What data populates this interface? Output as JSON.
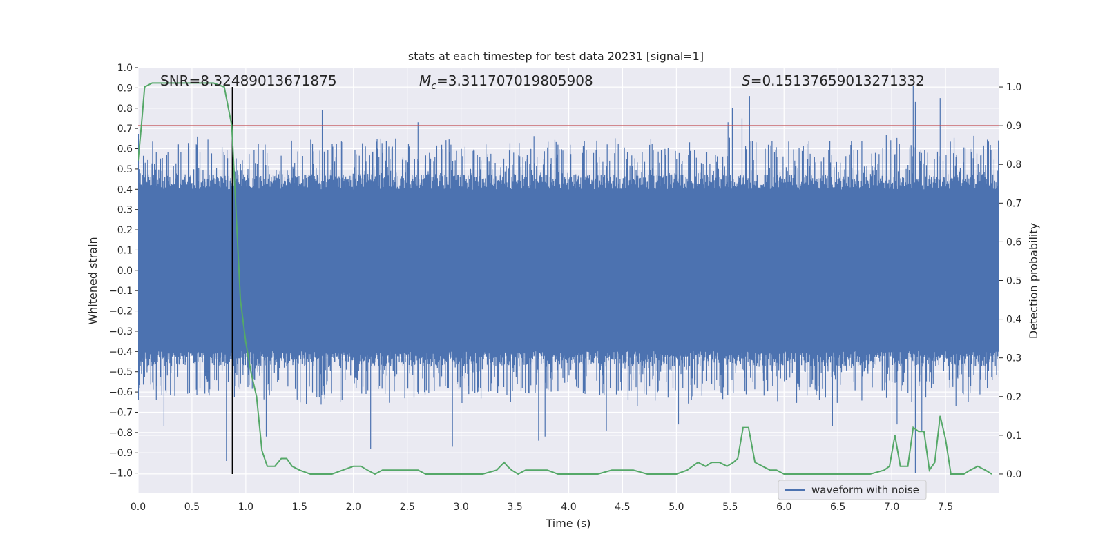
{
  "chart_data": {
    "type": "line",
    "title": "stats at each timestep for test data 20231 [signal=1]",
    "xlabel": "Time (s)",
    "ylabel": "Whitened strain",
    "y2label": "Detection probability",
    "xlim": [
      0,
      8.0
    ],
    "ylim": [
      -1.1,
      1.0
    ],
    "y2lim": [
      -0.05,
      1.05
    ],
    "xticks": [
      "0.0",
      "0.5",
      "1.0",
      "1.5",
      "2.0",
      "2.5",
      "3.0",
      "3.5",
      "4.0",
      "4.5",
      "5.0",
      "5.5",
      "6.0",
      "6.5",
      "7.0",
      "7.5"
    ],
    "yticks": [
      "1.0",
      "0.9",
      "0.8",
      "0.7",
      "0.6",
      "0.5",
      "0.4",
      "0.3",
      "0.2",
      "0.1",
      "0.0",
      "−0.1",
      "−0.2",
      "−0.3",
      "−0.4",
      "−0.5",
      "−0.6",
      "−0.7",
      "−0.8",
      "−0.9",
      "−1.0"
    ],
    "y2ticks": [
      "1.0",
      "0.9",
      "0.8",
      "0.7",
      "0.6",
      "0.5",
      "0.4",
      "0.3",
      "0.2",
      "0.1",
      "0.0"
    ],
    "grid": true,
    "legend_position": "lower-right",
    "background": "#eaeaf2",
    "colors": {
      "waveform": "#4c72b0",
      "probability": "#55a868",
      "threshold": "#c44e52",
      "marker": "#000000"
    },
    "annotations": {
      "snr": "SNR=8.32489013671875",
      "mc_symbol": "M",
      "mc_sub": "c",
      "mc_value": "=3.311707019805908",
      "s_symbol": "S",
      "s_value": "=0.15137659013271332"
    },
    "marker_x": 0.875,
    "threshold_y2": 0.9,
    "series": [
      {
        "name": "waveform with noise",
        "axis": "left",
        "envelope_base": 0.42,
        "spikes": [
          {
            "x": 0.82,
            "y": -0.94
          },
          {
            "x": 0.24,
            "y": -0.77
          },
          {
            "x": 1.19,
            "y": -0.82
          },
          {
            "x": 1.71,
            "y": 0.79
          },
          {
            "x": 2.16,
            "y": -0.88
          },
          {
            "x": 2.92,
            "y": -0.87
          },
          {
            "x": 2.6,
            "y": 0.73
          },
          {
            "x": 3.72,
            "y": -0.84
          },
          {
            "x": 3.78,
            "y": -0.82
          },
          {
            "x": 4.35,
            "y": -0.79
          },
          {
            "x": 5.02,
            "y": -0.76
          },
          {
            "x": 5.48,
            "y": 0.73
          },
          {
            "x": 5.52,
            "y": 0.8
          },
          {
            "x": 5.68,
            "y": 0.86
          },
          {
            "x": 5.61,
            "y": 0.75
          },
          {
            "x": 7.2,
            "y": 0.91
          },
          {
            "x": 7.22,
            "y": 0.83
          },
          {
            "x": 7.45,
            "y": 0.85
          },
          {
            "x": 7.22,
            "y": -1.0
          },
          {
            "x": 7.28,
            "y": -0.79
          },
          {
            "x": 6.45,
            "y": -0.77
          },
          {
            "x": 7.05,
            "y": -0.76
          },
          {
            "x": 6.95,
            "y": 0.67
          },
          {
            "x": 0.55,
            "y": 0.66
          }
        ]
      },
      {
        "name": "detection probability",
        "axis": "right",
        "x": [
          0.0,
          0.03,
          0.06,
          0.13,
          0.2,
          0.3,
          0.4,
          0.5,
          0.6,
          0.7,
          0.8,
          0.87,
          0.95,
          1.0,
          1.05,
          1.1,
          1.15,
          1.2,
          1.27,
          1.33,
          1.38,
          1.43,
          1.5,
          1.6,
          1.7,
          1.8,
          1.9,
          2.0,
          2.07,
          2.13,
          2.2,
          2.27,
          2.33,
          2.4,
          2.47,
          2.53,
          2.6,
          2.67,
          2.73,
          2.8,
          2.9,
          3.0,
          3.1,
          3.2,
          3.33,
          3.4,
          3.43,
          3.47,
          3.53,
          3.6,
          3.67,
          3.73,
          3.8,
          3.9,
          4.0,
          4.13,
          4.27,
          4.4,
          4.5,
          4.6,
          4.73,
          4.87,
          5.0,
          5.1,
          5.2,
          5.27,
          5.33,
          5.4,
          5.47,
          5.53,
          5.57,
          5.62,
          5.67,
          5.73,
          5.8,
          5.87,
          5.93,
          6.0,
          6.13,
          6.27,
          6.4,
          6.53,
          6.67,
          6.8,
          6.93,
          6.98,
          7.03,
          7.08,
          7.15,
          7.2,
          7.25,
          7.3,
          7.35,
          7.4,
          7.45,
          7.5,
          7.55,
          7.6,
          7.67,
          7.73,
          7.8,
          7.87,
          7.93
        ],
        "y": [
          0.81,
          0.9,
          1.0,
          1.01,
          1.01,
          1.01,
          1.01,
          1.01,
          1.01,
          1.01,
          1.0,
          0.9,
          0.45,
          0.34,
          0.26,
          0.2,
          0.06,
          0.02,
          0.02,
          0.04,
          0.04,
          0.02,
          0.01,
          0.0,
          0.0,
          0.0,
          0.01,
          0.02,
          0.02,
          0.01,
          0.0,
          0.01,
          0.01,
          0.01,
          0.01,
          0.01,
          0.01,
          0.0,
          0.0,
          0.0,
          0.0,
          0.0,
          0.0,
          0.0,
          0.01,
          0.03,
          0.02,
          0.01,
          0.0,
          0.01,
          0.01,
          0.01,
          0.01,
          0.0,
          0.0,
          0.0,
          0.0,
          0.01,
          0.01,
          0.01,
          0.0,
          0.0,
          0.0,
          0.01,
          0.03,
          0.02,
          0.03,
          0.03,
          0.02,
          0.03,
          0.04,
          0.12,
          0.12,
          0.03,
          0.02,
          0.01,
          0.01,
          0.0,
          0.0,
          0.0,
          0.0,
          0.0,
          0.0,
          0.0,
          0.01,
          0.02,
          0.1,
          0.02,
          0.02,
          0.12,
          0.11,
          0.11,
          0.01,
          0.03,
          0.15,
          0.09,
          0.0,
          0.0,
          0.0,
          0.01,
          0.02,
          0.01,
          0.0
        ]
      }
    ]
  }
}
